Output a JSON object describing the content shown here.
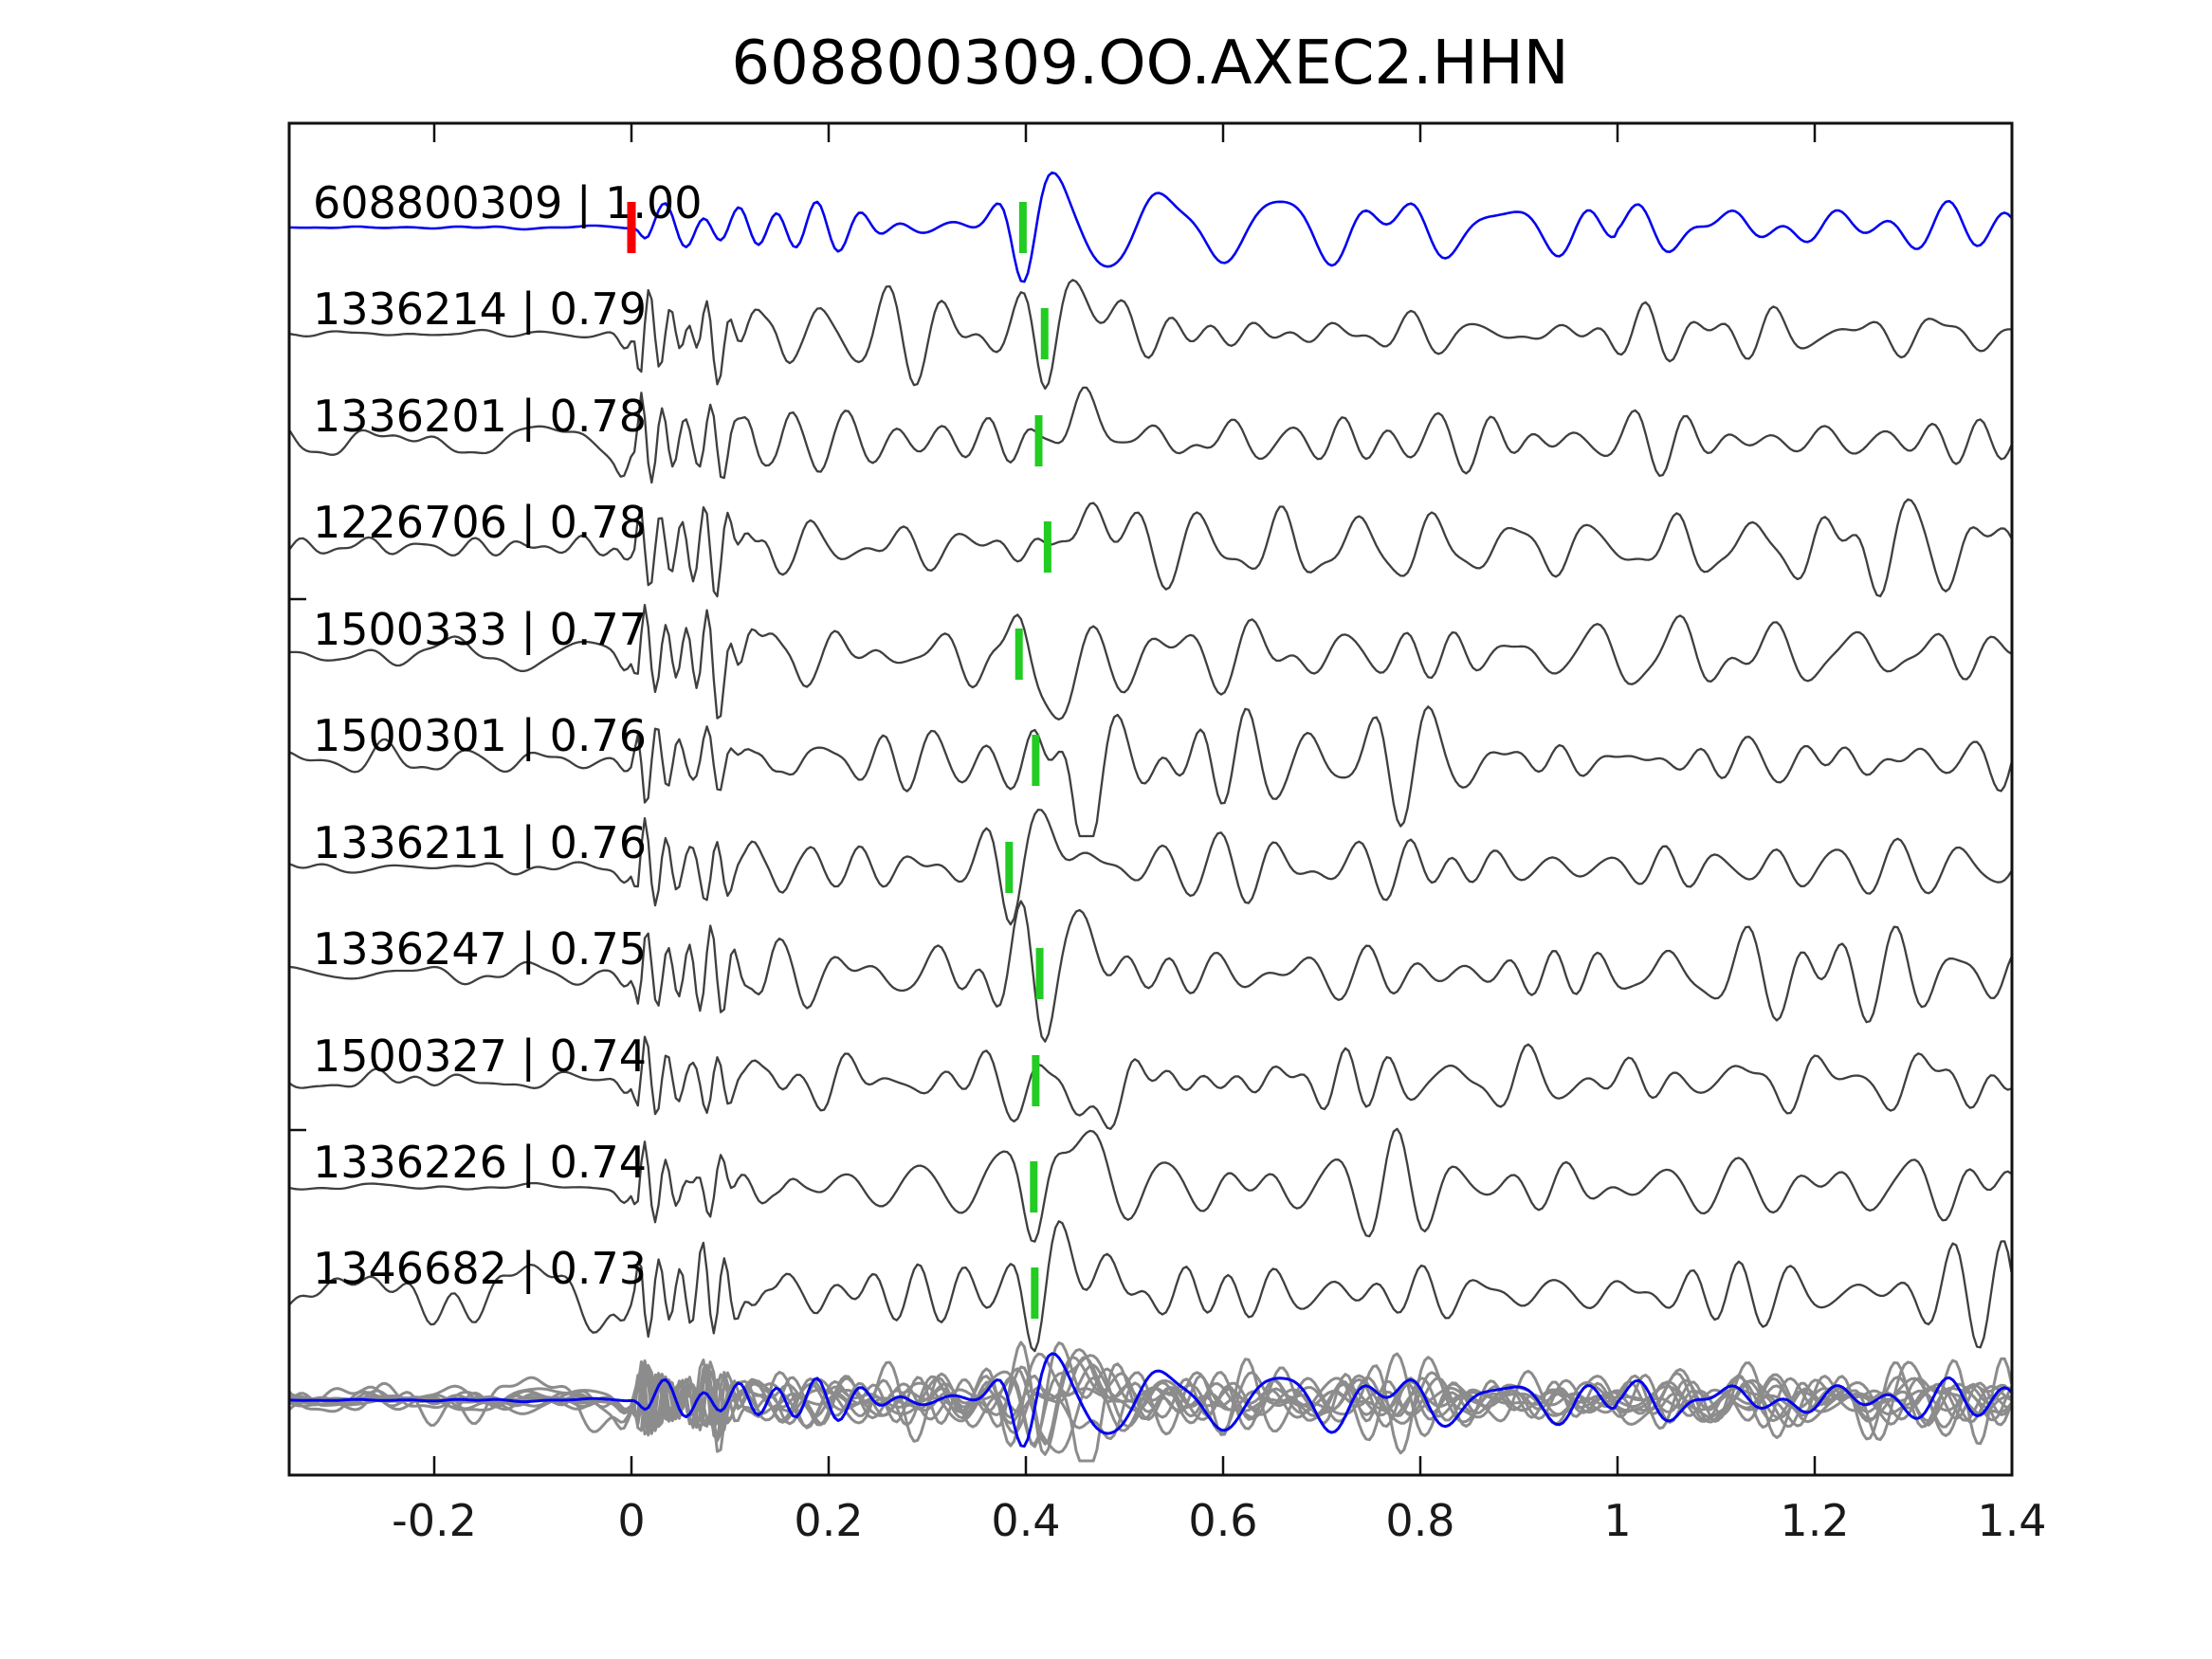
{
  "figure": {
    "title": "608800309.OO.AXEC2.HHN",
    "background": "#ffffff"
  },
  "chart_data": {
    "type": "line",
    "title": "608800309.OO.AXEC2.HHN",
    "xlabel": "",
    "ylabel": "",
    "x_range": [
      -0.347,
      1.4
    ],
    "x_ticks": [
      -0.2,
      0,
      0.2,
      0.4,
      0.6,
      0.8,
      1,
      1.2,
      1.4
    ],
    "x_tick_labels": [
      "-0.2",
      "0",
      "0.2",
      "0.4",
      "0.6",
      "0.8",
      "1",
      "1.2",
      "1.4"
    ],
    "grid": false,
    "colors": {
      "template_trace": "#0404ee",
      "detection_trace": "#3f3f3f",
      "stack_gray": "#8c8c8c",
      "pick_marker": "#22cc22",
      "template_arrival_marker": "#f50000",
      "axis": "#111111"
    },
    "traces": [
      {
        "id": "608800309",
        "corr": "1.00",
        "label": "608800309 | 1.00",
        "role": "template",
        "pick": 0.397,
        "arrival": 0.0,
        "seed": 11,
        "pre": [
          0.8,
          0.5
        ],
        "burst": 0,
        "mid": 9,
        "pick_amp": -58
      },
      {
        "id": "1336214",
        "corr": "0.79",
        "label": "1336214 | 0.79",
        "role": "detection",
        "pick": 0.419,
        "seed": 22,
        "pre": [
          2,
          2
        ],
        "burst": 62,
        "mid": 21,
        "pick_amp": -45
      },
      {
        "id": "1336201",
        "corr": "0.78",
        "label": "1336201 | 0.78",
        "role": "detection",
        "pick": 0.413,
        "seed": 33,
        "pre": [
          12,
          3
        ],
        "burst": 60,
        "mid": 22,
        "pick_amp": -42
      },
      {
        "id": "1226706",
        "corr": "0.78",
        "label": "1226706 | 0.78",
        "role": "detection",
        "pick": 0.422,
        "seed": 44,
        "pre": [
          2,
          6
        ],
        "burst": 58,
        "mid": 20,
        "pick_amp": -44
      },
      {
        "id": "1500333",
        "corr": "0.77",
        "label": "1500333 | 0.77",
        "role": "detection",
        "pick": 0.393,
        "seed": 55,
        "pre": [
          12,
          4
        ],
        "burst": 60,
        "mid": 22,
        "pick_amp": 48
      },
      {
        "id": "1500301",
        "corr": "0.76",
        "label": "1500301 | 0.76",
        "role": "detection",
        "pick": 0.41,
        "seed": 66,
        "pre": [
          8,
          4
        ],
        "burst": 58,
        "mid": 22,
        "pick_amp": 50
      },
      {
        "id": "1336211",
        "corr": "0.76",
        "label": "1336211 | 0.76",
        "role": "detection",
        "pick": 0.383,
        "seed": 77,
        "pre": [
          3,
          3
        ],
        "burst": 60,
        "mid": 20,
        "pick_amp": -40
      },
      {
        "id": "1336247",
        "corr": "0.75",
        "label": "1336247 | 0.75",
        "role": "detection",
        "pick": 0.414,
        "seed": 88,
        "pre": [
          7,
          2
        ],
        "burst": 56,
        "mid": 21,
        "pick_amp": -42
      },
      {
        "id": "1500327",
        "corr": "0.74",
        "label": "1500327 | 0.74",
        "role": "detection",
        "pick": 0.41,
        "seed": 99,
        "pre": [
          7,
          4
        ],
        "burst": 57,
        "mid": 21,
        "pick_amp": 46
      },
      {
        "id": "1336226",
        "corr": "0.74",
        "label": "1336226 | 0.74",
        "role": "detection",
        "pick": 0.408,
        "seed": 110,
        "pre": [
          1.5,
          1
        ],
        "burst": 55,
        "mid": 20,
        "pick_amp": -48
      },
      {
        "id": "1346682",
        "corr": "0.73",
        "label": "1346682 | 0.73",
        "role": "detection",
        "pick": 0.409,
        "seed": 121,
        "pre": [
          12,
          8
        ],
        "burst": 58,
        "mid": 24,
        "pick_amp": -52
      }
    ],
    "stack": {
      "description": "all detections overlaid with template",
      "gray_color": "#8c8c8c",
      "template_color": "#0404ee",
      "amp_scale": 0.8,
      "template_amp_scale": 0.85
    }
  }
}
